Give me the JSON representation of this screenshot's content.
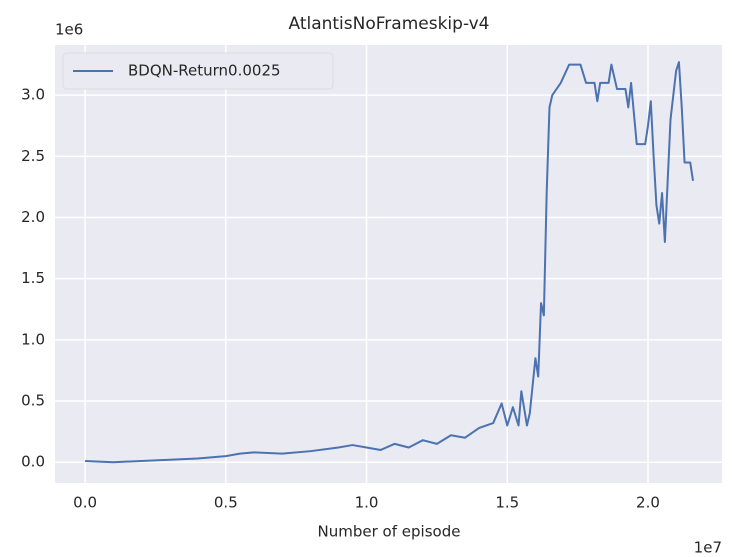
{
  "chart_data": {
    "type": "line",
    "title": "AtlantisNoFrameskip-v4",
    "xlabel": "Number of episode",
    "x_offset_label": "1e7",
    "y_offset_label": "1e6",
    "xlim": [
      -0.107,
      2.263
    ],
    "ylim": [
      -0.17,
      3.41
    ],
    "xticks": [
      {
        "value": 0,
        "label": "0.0"
      },
      0.5,
      {
        "value": 1,
        "label": "1.0"
      },
      1.5,
      {
        "value": 2,
        "label": "2.0"
      }
    ],
    "yticks": [
      {
        "value": 0,
        "label": "0.0"
      },
      0.5,
      {
        "value": 1,
        "label": "1.0"
      },
      1.5,
      {
        "value": 2,
        "label": "2.0"
      },
      2.5,
      {
        "value": 3,
        "label": "3.0"
      }
    ],
    "grid": true,
    "legend": "upper left",
    "x": [
      0.0,
      0.1,
      0.2,
      0.3,
      0.4,
      0.5,
      0.55,
      0.6,
      0.7,
      0.8,
      0.9,
      0.95,
      1.0,
      1.05,
      1.1,
      1.15,
      1.2,
      1.25,
      1.3,
      1.35,
      1.4,
      1.45,
      1.48,
      1.5,
      1.52,
      1.54,
      1.55,
      1.57,
      1.58,
      1.6,
      1.61,
      1.62,
      1.63,
      1.64,
      1.65,
      1.66,
      1.69,
      1.72,
      1.76,
      1.78,
      1.81,
      1.82,
      1.83,
      1.86,
      1.87,
      1.89,
      1.92,
      1.93,
      1.94,
      1.95,
      1.96,
      1.99,
      2.0,
      2.01,
      2.02,
      2.03,
      2.04,
      2.05,
      2.06,
      2.07,
      2.08,
      2.1,
      2.11,
      2.12,
      2.13,
      2.15,
      2.16
    ],
    "series": [
      {
        "name": "BDQN-Return0.0025",
        "color": "#4c72b0",
        "values": [
          0.01,
          0.0,
          0.01,
          0.02,
          0.03,
          0.05,
          0.07,
          0.08,
          0.07,
          0.09,
          0.12,
          0.14,
          0.12,
          0.1,
          0.15,
          0.12,
          0.18,
          0.15,
          0.22,
          0.2,
          0.28,
          0.32,
          0.48,
          0.3,
          0.45,
          0.3,
          0.58,
          0.3,
          0.4,
          0.85,
          0.7,
          1.3,
          1.2,
          2.2,
          2.9,
          3.0,
          3.1,
          3.25,
          3.25,
          3.1,
          3.1,
          2.95,
          3.1,
          3.1,
          3.25,
          3.05,
          3.05,
          2.9,
          3.1,
          2.85,
          2.6,
          2.6,
          2.75,
          2.95,
          2.5,
          2.1,
          1.95,
          2.2,
          1.8,
          2.3,
          2.8,
          3.2,
          3.27,
          2.9,
          2.45,
          2.45,
          2.3
        ]
      }
    ]
  }
}
